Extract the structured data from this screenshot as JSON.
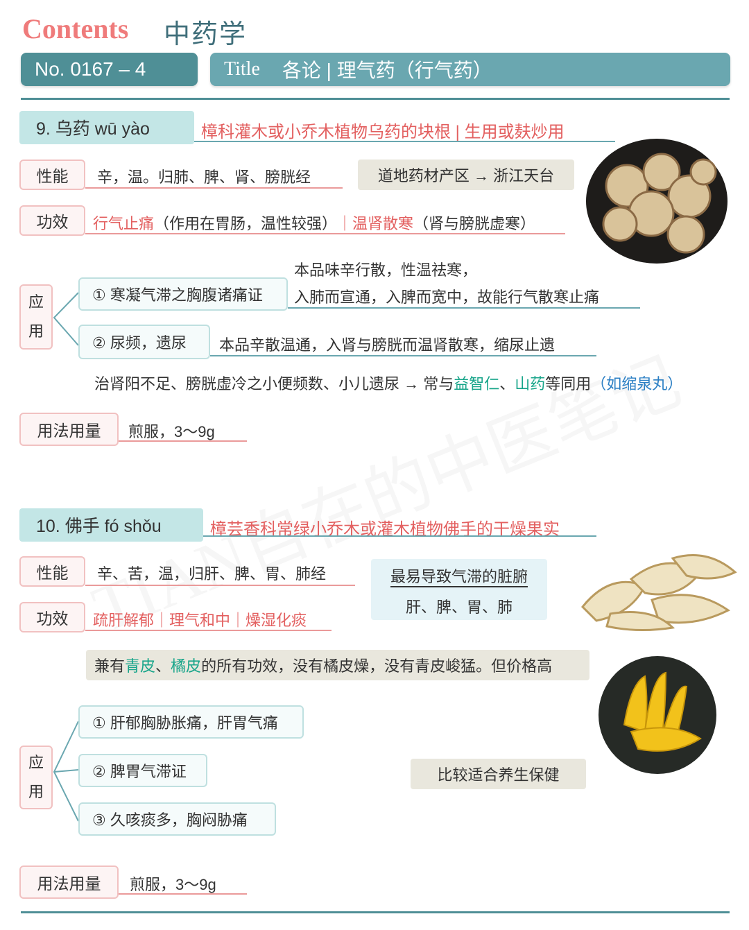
{
  "header": {
    "contents": "Contents",
    "subject": "中药学",
    "number": "No. 0167 – 4",
    "title_label": "Title",
    "title": "各论 | 理气药（行气药）"
  },
  "watermark": "TIAN自在的中医笔记",
  "sections": [
    {
      "heading": "9.  乌药  wū yào",
      "origin": "樟科灌木或小乔木植物乌药的块根 | 生用或麸炒用",
      "properties": {
        "label": "性能",
        "text": "辛，温。归肺、脾、肾、膀胱经"
      },
      "region": "道地药材产区 → 浙江天台",
      "effects": {
        "label": "功效",
        "parts": [
          "行气止痛",
          "（作用在胃肠，温性较强）",
          "｜温肾散寒",
          "（肾与膀胱虚寒）"
        ]
      },
      "application": {
        "label": [
          "应",
          "用"
        ],
        "items": [
          {
            "text": "① 寒凝气滞之胸腹诸痛证",
            "explanation": [
              "本品味辛行散，性温祛寒，",
              "入肺而宣通，入脾而宽中，故能行气散寒止痛"
            ]
          },
          {
            "text": "② 尿频，遗尿",
            "explanation": [
              "本品辛散温通，入肾与膀胱而温肾散寒，缩尿止遗"
            ]
          }
        ],
        "note": [
          "治肾阳不足、膀胱虚冷之小便频数、小儿遗尿 → 常与",
          "益智仁",
          "、",
          "山药",
          "等同用",
          "（如缩泉丸）"
        ]
      },
      "dosage": {
        "label": "用法用量",
        "text": "煎服，3～9g"
      }
    },
    {
      "heading": "10.  佛手  fó shǒu",
      "origin": "樟芸香科常绿小乔木或灌木植物佛手的干燥果实",
      "properties": {
        "label": "性能",
        "text": "辛、苦，温，归肝、脾、胃、肺经"
      },
      "organs": {
        "title": "最易导致气滞的脏腑",
        "text": "肝、脾、胃、肺"
      },
      "effects": {
        "label": "功效",
        "parts": [
          "疏肝解郁｜理气和中｜燥湿化痰"
        ]
      },
      "comparison": [
        "兼有",
        "青皮",
        "、",
        "橘皮",
        "的所有功效，没有橘皮燥，没有青皮峻猛。但价格高"
      ],
      "application": {
        "label": [
          "应",
          "用"
        ],
        "items": [
          {
            "text": "① 肝郁胸胁胀痛，肝胃气痛"
          },
          {
            "text": "② 脾胃气滞证"
          },
          {
            "text": "③ 久咳痰多，胸闷胁痛"
          }
        ],
        "note": "比较适合养生保健"
      },
      "dosage": {
        "label": "用法用量",
        "text": "煎服，3～9g"
      }
    }
  ]
}
